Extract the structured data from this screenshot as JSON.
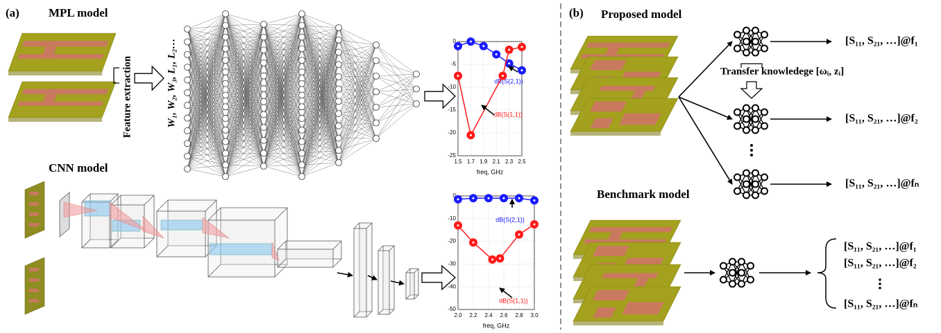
{
  "panel_a": {
    "label": "(a)",
    "title": "MPL model",
    "feature_label": "Feature extraction",
    "params_label": "W₁, W₂, W₃, L₁, L₂…",
    "cnn_title": "CNN model"
  },
  "charts": [
    {
      "type": "line",
      "xlabel": "freq, GHz",
      "xlim": [
        1.5,
        2.5
      ],
      "xticks": [
        1.5,
        1.7,
        1.9,
        2.1,
        2.3,
        2.5
      ],
      "ylim": [
        -25,
        0
      ],
      "yticks": [
        0,
        -5,
        -10,
        -15,
        -20,
        -25
      ],
      "grid": true,
      "series": [
        {
          "name": "dB(S(2,1))",
          "color": "#1a1aff",
          "x": [
            1.5,
            1.7,
            1.9,
            2.1,
            2.3,
            2.5
          ],
          "values": [
            -1,
            0,
            -1,
            -2.8,
            -4.8,
            -6.3
          ]
        },
        {
          "name": "dB(S(1,1))",
          "color": "#ff1a1a",
          "x": [
            1.5,
            1.7,
            2.2,
            2.3,
            2.5
          ],
          "values": [
            -7.5,
            -20.5,
            -7.5,
            -1.8,
            -1.2
          ]
        }
      ]
    },
    {
      "type": "line",
      "xlabel": "freq, GHz",
      "xlim": [
        2,
        3
      ],
      "xticks": [
        {
          "value": 2,
          "label": "2.0"
        },
        2.2,
        2.4,
        2.6,
        2.8,
        {
          "value": 3,
          "label": "3.0"
        }
      ],
      "ylim": [
        -50,
        0
      ],
      "yticks": [
        0,
        -10,
        -20,
        -30,
        -40,
        -50
      ],
      "grid": true,
      "series": [
        {
          "name": "dB(S(2,1))",
          "color": "#1a1aff",
          "x": [
            2,
            2.2,
            2.4,
            2.6,
            2.8,
            3
          ],
          "values": [
            -1.5,
            -1,
            -1,
            -1,
            -1,
            -2
          ]
        },
        {
          "name": "dB(S(1,1))",
          "color": "#ff1a1a",
          "x": [
            2,
            2.2,
            2.45,
            2.55,
            2.8,
            3
          ],
          "values": [
            -13,
            -20.5,
            -28,
            -27.5,
            -17,
            -12.5
          ]
        }
      ]
    }
  ],
  "panel_b": {
    "label": "(b)",
    "proposed_title": "Proposed model",
    "transfer_label": "Transfer knowledege [ωᵢ, zᵢ]",
    "proposed_outputs": [
      "[S₁₁, S₂₁, …]@f₁",
      "[S₁₁, S₂₁, …]@f₂",
      "[S₁₁, S₂₁, …]@fₙ"
    ],
    "benchmark_title": "Benchmark model",
    "benchmark_outputs": [
      "[S₁₁, S₂₁, …]@f₁",
      "[S₁₁, S₂₁, …]@f₂",
      "[S₁₁, S₂₁, …]@fₙ"
    ]
  }
}
